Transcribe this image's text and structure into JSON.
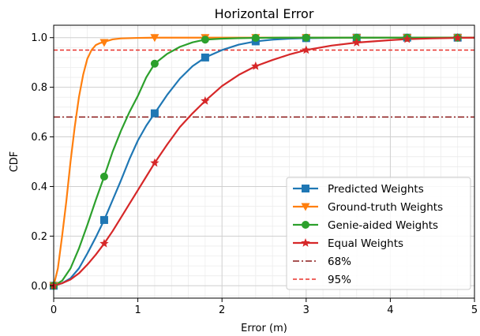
{
  "chart_data": {
    "type": "line",
    "title": "Horizontal Error",
    "xlabel": "Error (m)",
    "ylabel": "CDF",
    "xlim": [
      0,
      5
    ],
    "ylim": [
      -0.05,
      1.05
    ],
    "xticks": [
      0,
      1,
      2,
      3,
      4,
      5
    ],
    "xtick_labels": [
      "0",
      "1",
      "2",
      "3",
      "4",
      "5"
    ],
    "yticks": [
      0.0,
      0.2,
      0.4,
      0.6,
      0.8,
      1.0
    ],
    "ytick_labels": [
      "0.0",
      "0.2",
      "0.4",
      "0.6",
      "0.8",
      "1.0"
    ],
    "grid": true,
    "minor_grid": true,
    "legend_position": "lower-right",
    "series": [
      {
        "name": "Predicted Weights",
        "color": "#1f77b4",
        "marker": "square",
        "x": [
          0,
          0.1,
          0.2,
          0.3,
          0.4,
          0.5,
          0.6,
          0.7,
          0.8,
          0.9,
          1.0,
          1.1,
          1.2,
          1.35,
          1.5,
          1.65,
          1.8,
          2.0,
          2.2,
          2.4,
          2.6,
          2.8,
          3.0,
          3.3,
          3.6,
          4.0,
          4.5,
          5.0
        ],
        "y": [
          0,
          0.01,
          0.03,
          0.07,
          0.13,
          0.195,
          0.265,
          0.345,
          0.425,
          0.51,
          0.585,
          0.645,
          0.695,
          0.77,
          0.835,
          0.885,
          0.92,
          0.95,
          0.972,
          0.985,
          0.992,
          0.996,
          0.998,
          0.999,
          1.0,
          1.0,
          1.0,
          1.0
        ],
        "marker_x": [
          0,
          0.6,
          1.2,
          1.8,
          2.4,
          3.0,
          3.6,
          4.2,
          4.8
        ],
        "marker_y": [
          0,
          0.265,
          0.695,
          0.92,
          0.985,
          0.998,
          1.0,
          1.0,
          1.0
        ]
      },
      {
        "name": "Ground-truth Weights",
        "color": "#ff7f0e",
        "marker": "triangle-down",
        "x": [
          0,
          0.05,
          0.1,
          0.15,
          0.2,
          0.25,
          0.3,
          0.35,
          0.4,
          0.45,
          0.5,
          0.55,
          0.6,
          0.7,
          0.8,
          1.0,
          1.2,
          1.5,
          2.0,
          3.0,
          4.0,
          5.0
        ],
        "y": [
          0,
          0.07,
          0.2,
          0.34,
          0.5,
          0.64,
          0.76,
          0.85,
          0.915,
          0.95,
          0.97,
          0.978,
          0.983,
          0.993,
          0.997,
          0.999,
          1.0,
          1.0,
          1.0,
          1.0,
          1.0,
          1.0
        ],
        "marker_x": [
          0,
          0.6,
          1.2,
          1.8,
          2.4,
          3.0,
          3.6,
          4.2,
          4.8
        ],
        "marker_y": [
          0,
          0.98,
          1.0,
          1.0,
          1.0,
          1.0,
          1.0,
          1.0,
          1.0
        ]
      },
      {
        "name": "Genie-aided Weights",
        "color": "#2ca02c",
        "marker": "circle",
        "x": [
          0,
          0.1,
          0.2,
          0.3,
          0.4,
          0.5,
          0.6,
          0.7,
          0.8,
          0.9,
          1.0,
          1.1,
          1.2,
          1.35,
          1.5,
          1.65,
          1.8,
          2.0,
          2.2,
          2.4,
          2.7,
          3.0,
          3.5,
          4.0,
          5.0
        ],
        "y": [
          0,
          0.02,
          0.07,
          0.15,
          0.245,
          0.345,
          0.44,
          0.54,
          0.625,
          0.7,
          0.765,
          0.84,
          0.895,
          0.935,
          0.963,
          0.981,
          0.992,
          0.996,
          0.998,
          0.999,
          1.0,
          1.0,
          1.0,
          1.0,
          1.0
        ],
        "marker_x": [
          0,
          0.6,
          1.2,
          1.8,
          2.4,
          3.0,
          3.6,
          4.2,
          4.8
        ],
        "marker_y": [
          0,
          0.44,
          0.895,
          0.992,
          0.999,
          1.0,
          1.0,
          1.0,
          1.0
        ]
      },
      {
        "name": "Equal Weights",
        "color": "#d62728",
        "marker": "star",
        "x": [
          0,
          0.1,
          0.2,
          0.3,
          0.4,
          0.5,
          0.6,
          0.7,
          0.8,
          0.9,
          1.0,
          1.1,
          1.2,
          1.35,
          1.5,
          1.65,
          1.8,
          2.0,
          2.2,
          2.4,
          2.6,
          2.8,
          3.0,
          3.3,
          3.6,
          4.0,
          4.2,
          4.5,
          4.8,
          5.0
        ],
        "y": [
          0,
          0.01,
          0.025,
          0.05,
          0.085,
          0.125,
          0.17,
          0.22,
          0.275,
          0.33,
          0.385,
          0.44,
          0.495,
          0.57,
          0.64,
          0.695,
          0.745,
          0.805,
          0.85,
          0.885,
          0.91,
          0.932,
          0.95,
          0.968,
          0.98,
          0.99,
          0.994,
          0.997,
          0.999,
          1.0
        ],
        "marker_x": [
          0,
          0.6,
          1.2,
          1.8,
          2.4,
          3.0,
          3.6,
          4.2,
          4.8
        ],
        "marker_y": [
          0,
          0.17,
          0.495,
          0.745,
          0.885,
          0.95,
          0.98,
          0.994,
          0.999
        ]
      }
    ],
    "reference_lines": [
      {
        "name": "68%",
        "y": 0.68,
        "color": "#8b1a1a",
        "style": "dashdot"
      },
      {
        "name": "95%",
        "y": 0.95,
        "color": "#e8302a",
        "style": "dashed"
      }
    ]
  }
}
